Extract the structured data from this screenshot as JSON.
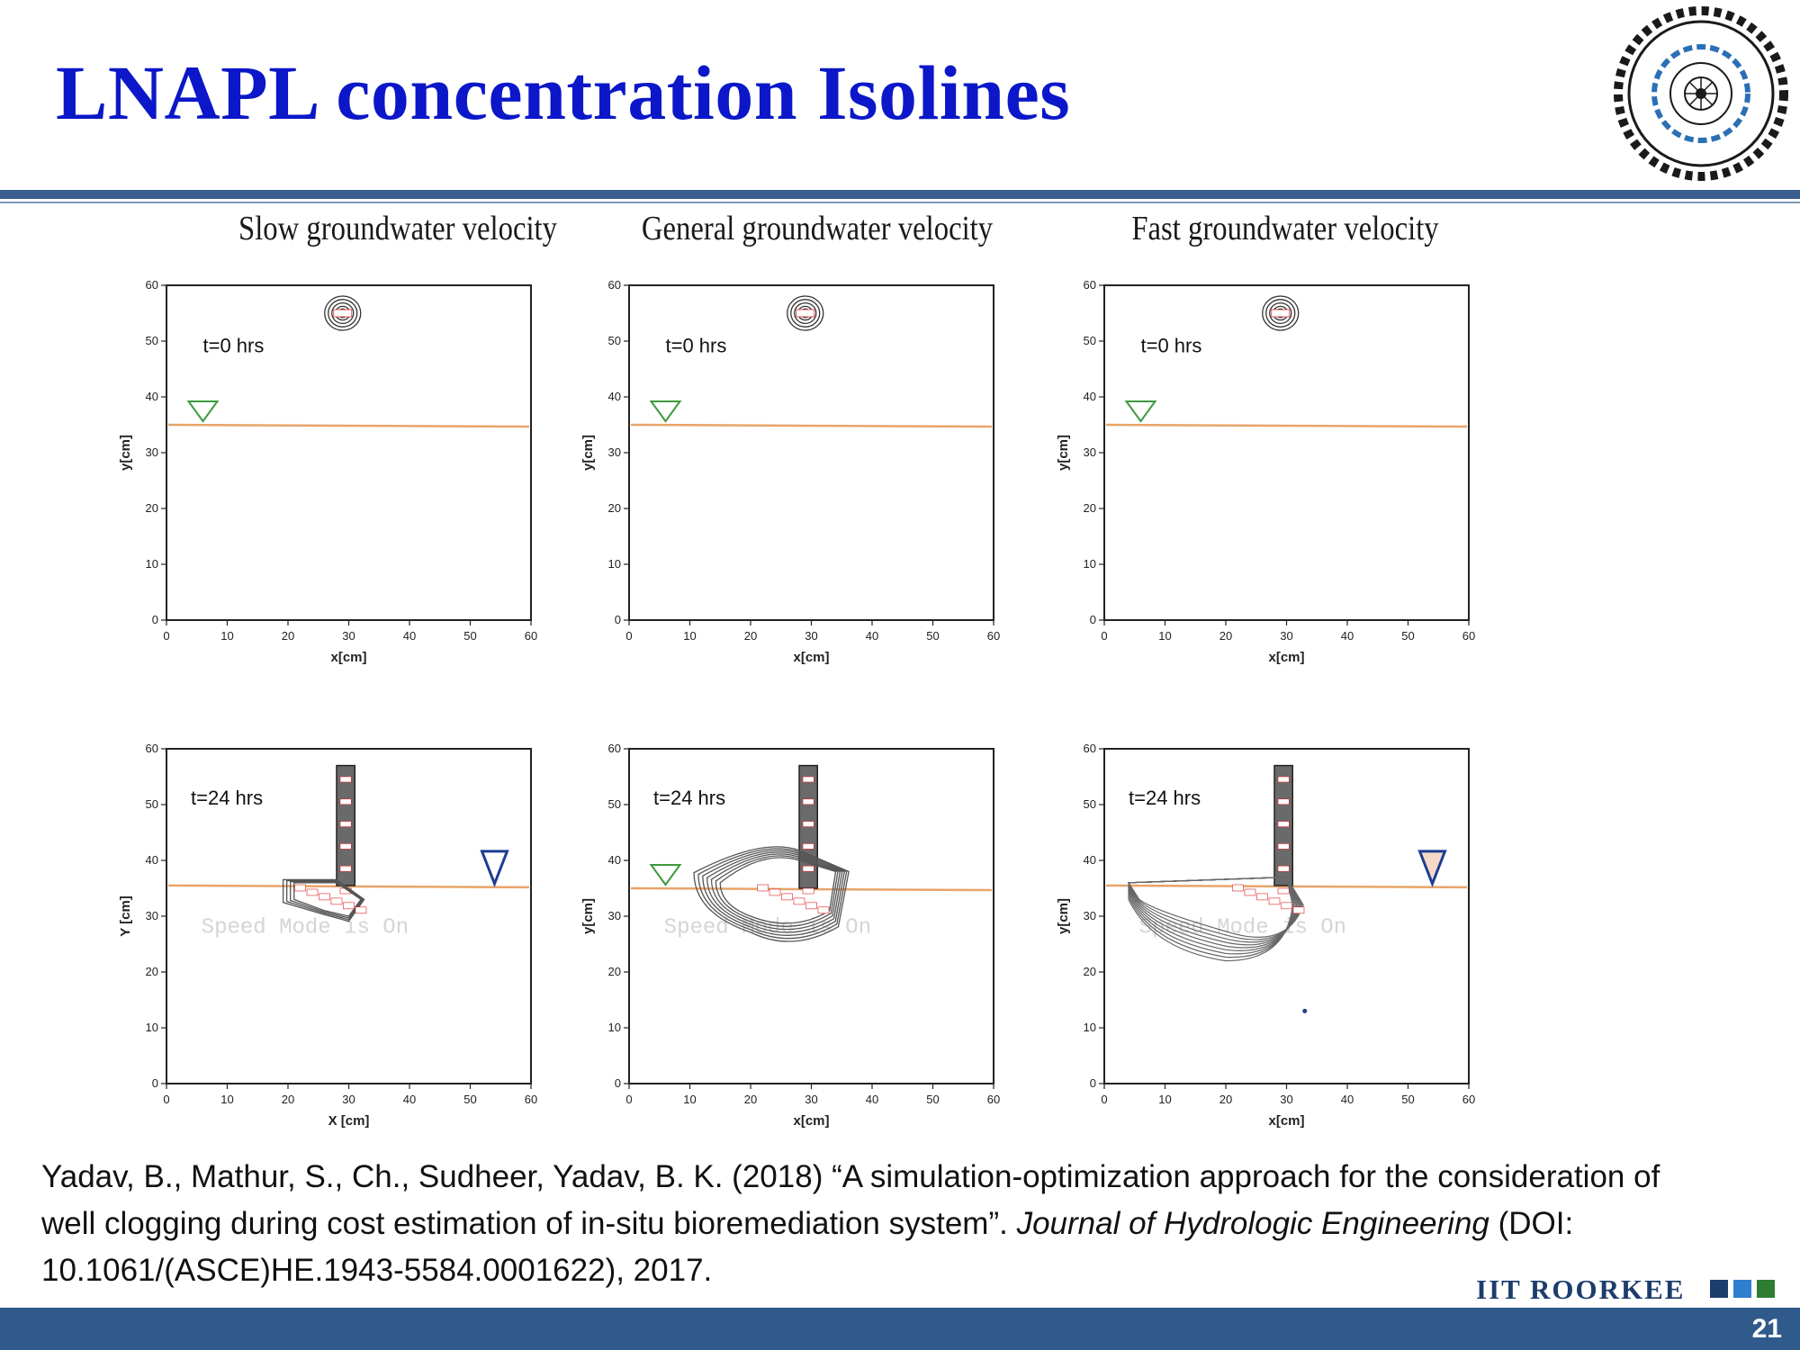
{
  "slide": {
    "title": "LNAPL concentration Isolines",
    "logo_label": "IIT Roorkee emblem",
    "columns": [
      "Slow groundwater velocity",
      "General groundwater velocity",
      "Fast groundwater velocity"
    ],
    "page_number": "21",
    "brand": "IIT ROORKEE",
    "colors": {
      "title": "#0b17c8",
      "rule": "#3a5f8f",
      "footer": "#2f5a8b",
      "water_line": "#e8a46a"
    }
  },
  "citation": {
    "part1": "Yadav, B., Mathur, S., Ch., Sudheer, Yadav, B. K. (2018) “A simulation-optimization approach for the consideration of well clogging during cost estimation of in-situ bioremediation system”. ",
    "journal": "Journal of Hydrologic Engineering",
    "part2": " (DOI: 10.1061/(ASCE)HE.1943-5584.0001622), 2017."
  },
  "chart_data": [
    {
      "type": "contour",
      "row": "top",
      "column": "Slow groundwater velocity",
      "annotation": "t=0 hrs",
      "xlabel": "x[cm]",
      "ylabel": "y[cm]",
      "xlim": [
        0,
        60
      ],
      "ylim": [
        0,
        60
      ],
      "xticks": [
        0,
        10,
        20,
        30,
        40,
        50,
        60
      ],
      "yticks": [
        0,
        10,
        20,
        30,
        40,
        50,
        60
      ],
      "water_table_y": 35
    },
    {
      "type": "contour",
      "row": "top",
      "column": "General groundwater velocity",
      "annotation": "t=0 hrs",
      "xlabel": "x[cm]",
      "ylabel": "y[cm]",
      "xlim": [
        0,
        60
      ],
      "ylim": [
        0,
        60
      ],
      "xticks": [
        0,
        10,
        20,
        30,
        40,
        50,
        60
      ],
      "yticks": [
        0,
        10,
        20,
        30,
        40,
        50,
        60
      ],
      "water_table_y": 35
    },
    {
      "type": "contour",
      "row": "top",
      "column": "Fast groundwater velocity",
      "annotation": "t=0 hrs",
      "xlabel": "x[cm]",
      "ylabel": "y[cm]",
      "xlim": [
        0,
        60
      ],
      "ylim": [
        0,
        60
      ],
      "xticks": [
        0,
        10,
        20,
        30,
        40,
        50,
        60
      ],
      "yticks": [
        0,
        10,
        20,
        30,
        40,
        50,
        60
      ],
      "water_table_y": 35
    },
    {
      "type": "contour",
      "row": "bottom",
      "column": "Slow groundwater velocity",
      "annotation": "t=24 hrs",
      "xlabel": "X [cm]",
      "ylabel": "Y [cm]",
      "xlim": [
        0,
        60
      ],
      "ylim": [
        0,
        60
      ],
      "xticks": [
        0,
        10,
        20,
        30,
        40,
        50,
        60
      ],
      "yticks": [
        0,
        10,
        20,
        30,
        40,
        50,
        60
      ],
      "water_table_y": 35.5,
      "watermark": "Speed Mode is On"
    },
    {
      "type": "contour",
      "row": "bottom",
      "column": "General groundwater velocity",
      "annotation": "t=24 hrs",
      "xlabel": "x[cm]",
      "ylabel": "y[cm]",
      "xlim": [
        0,
        60
      ],
      "ylim": [
        0,
        60
      ],
      "xticks": [
        0,
        10,
        20,
        30,
        40,
        50,
        60
      ],
      "yticks": [
        0,
        10,
        20,
        30,
        40,
        50,
        60
      ],
      "water_table_y": 35,
      "watermark": "Speed Mode is On"
    },
    {
      "type": "contour",
      "row": "bottom",
      "column": "Fast groundwater velocity",
      "annotation": "t=24 hrs",
      "xlabel": "x[cm]",
      "ylabel": "y[cm]",
      "xlim": [
        0,
        60
      ],
      "ylim": [
        0,
        60
      ],
      "xticks": [
        0,
        10,
        20,
        30,
        40,
        50,
        60
      ],
      "yticks": [
        0,
        10,
        20,
        30,
        40,
        50,
        60
      ],
      "water_table_y": 35.5,
      "watermark": "Speed Mode is On"
    }
  ]
}
